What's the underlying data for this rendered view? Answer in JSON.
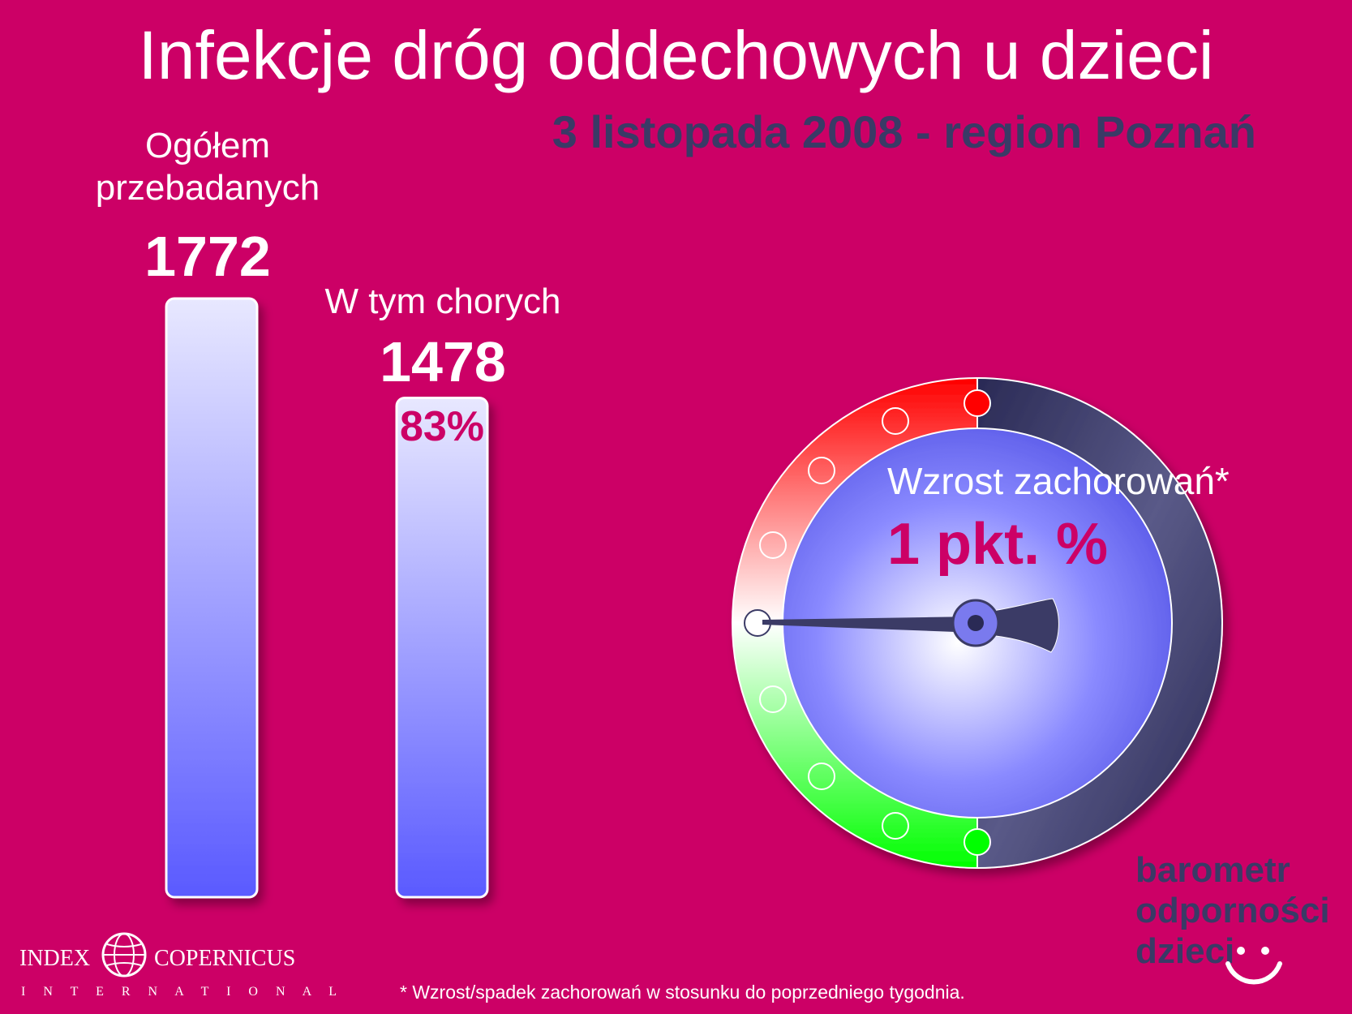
{
  "title": "Infekcje dróg oddechowych u dzieci",
  "subtitle": "3 listopada 2008 - region Poznań",
  "chart_data": {
    "type": "bar",
    "categories": [
      "Ogółem przebadanych",
      "W tym chorych"
    ],
    "values": [
      1772,
      1478
    ],
    "category_lines": [
      [
        "Ogółem",
        "przebadanych"
      ],
      [
        "W tym chorych"
      ]
    ],
    "value_labels": [
      "1772",
      "1478"
    ],
    "share_label": "83%",
    "ylim": [
      0,
      1772
    ]
  },
  "gauge": {
    "title": "Wzrost zachorowań*",
    "value_label": "1 pkt. %",
    "colors": {
      "increase": "#ff0000",
      "decrease": "#00ff00",
      "face": "#6f6fff",
      "rim": "#3a3a66"
    }
  },
  "footnote": "* Wzrost/spadek zachorowań w stosunku do poprzedniego tygodnia.",
  "brand": {
    "line1": "barometr",
    "line2": "odporności",
    "line3": "dzieci"
  },
  "publisher": {
    "left": "INDEX",
    "right": "COPERNICUS",
    "sub": "I N T E R N A T I O N A L"
  }
}
